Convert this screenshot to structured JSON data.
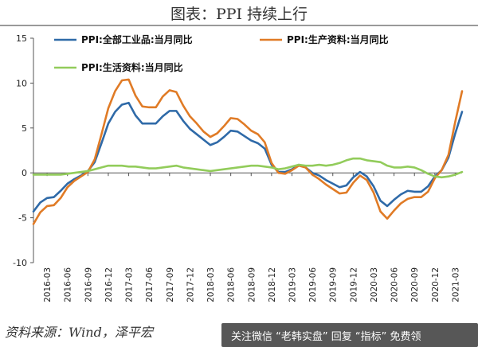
{
  "header": {
    "title": "图表：PPI 持续上行"
  },
  "footer": {
    "source": "资料来源：Wind，泽平宏",
    "watermark": "关注微信 “老韩实盘” 回复 “指标” 免费领"
  },
  "chart_data": {
    "type": "line",
    "title": "图表：PPI 持续上行",
    "xlabel": "",
    "ylabel": "",
    "ylim": [
      -10,
      15
    ],
    "yticks": [
      -10,
      -5,
      0,
      5,
      10,
      15
    ],
    "grid": false,
    "legend_position": "top",
    "x_tick_labels": [
      "2016-03",
      "2016-06",
      "2016-09",
      "2016-12",
      "2017-03",
      "2017-06",
      "2017-09",
      "2017-12",
      "2018-03",
      "2018-06",
      "2018-09",
      "2018-12",
      "2019-03",
      "2019-06",
      "2019-09",
      "2019-12",
      "2020-03",
      "2020-06",
      "2020-09",
      "2020-12",
      "2021-03"
    ],
    "x": [
      "2016-01",
      "2016-02",
      "2016-03",
      "2016-04",
      "2016-05",
      "2016-06",
      "2016-07",
      "2016-08",
      "2016-09",
      "2016-10",
      "2016-11",
      "2016-12",
      "2017-01",
      "2017-02",
      "2017-03",
      "2017-04",
      "2017-05",
      "2017-06",
      "2017-07",
      "2017-08",
      "2017-09",
      "2017-10",
      "2017-11",
      "2017-12",
      "2018-01",
      "2018-02",
      "2018-03",
      "2018-04",
      "2018-05",
      "2018-06",
      "2018-07",
      "2018-08",
      "2018-09",
      "2018-10",
      "2018-11",
      "2018-12",
      "2019-01",
      "2019-02",
      "2019-03",
      "2019-04",
      "2019-05",
      "2019-06",
      "2019-07",
      "2019-08",
      "2019-09",
      "2019-10",
      "2019-11",
      "2019-12",
      "2020-01",
      "2020-02",
      "2020-03",
      "2020-04",
      "2020-05",
      "2020-06",
      "2020-07",
      "2020-08",
      "2020-09",
      "2020-10",
      "2020-11",
      "2020-12",
      "2021-01",
      "2021-02",
      "2021-03",
      "2021-04"
    ],
    "series": [
      {
        "name": "PPI:全部工业品:当月同比",
        "color": "#2f6aa8",
        "values": [
          -4.3,
          -3.3,
          -2.8,
          -2.7,
          -2.0,
          -1.2,
          -0.7,
          -0.3,
          0.2,
          1.2,
          3.3,
          5.5,
          6.8,
          7.6,
          7.8,
          6.4,
          5.5,
          5.5,
          5.5,
          6.3,
          6.9,
          6.9,
          5.8,
          4.9,
          4.3,
          3.7,
          3.1,
          3.4,
          4.0,
          4.7,
          4.6,
          4.1,
          3.6,
          3.3,
          2.7,
          0.9,
          0.1,
          0.1,
          0.4,
          0.9,
          0.6,
          0.0,
          -0.3,
          -0.8,
          -1.2,
          -1.6,
          -1.4,
          -0.5,
          0.1,
          -0.4,
          -1.5,
          -3.1,
          -3.7,
          -3.0,
          -2.4,
          -2.0,
          -2.1,
          -2.1,
          -1.5,
          -0.4,
          0.3,
          1.7,
          4.4,
          6.8
        ]
      },
      {
        "name": "PPI:生产资料:当月同比",
        "color": "#e07b26",
        "values": [
          -5.7,
          -4.4,
          -3.7,
          -3.6,
          -2.8,
          -1.6,
          -0.9,
          -0.4,
          0.1,
          1.5,
          4.3,
          7.2,
          9.1,
          10.3,
          10.4,
          8.6,
          7.4,
          7.3,
          7.3,
          8.5,
          9.2,
          9.0,
          7.5,
          6.3,
          5.5,
          4.6,
          4.0,
          4.4,
          5.2,
          6.1,
          6.0,
          5.4,
          4.7,
          4.3,
          3.4,
          1.1,
          0.0,
          -0.1,
          0.3,
          0.8,
          0.6,
          -0.2,
          -0.7,
          -1.3,
          -1.8,
          -2.3,
          -2.2,
          -1.1,
          -0.3,
          -0.8,
          -2.2,
          -4.3,
          -5.1,
          -4.2,
          -3.4,
          -2.9,
          -2.7,
          -2.7,
          -2.1,
          -0.6,
          0.3,
          2.0,
          5.7,
          9.1
        ]
      },
      {
        "name": "PPI:生活资料:当月同比",
        "color": "#92cc5b",
        "values": [
          -0.2,
          -0.2,
          -0.2,
          -0.2,
          -0.2,
          -0.1,
          0.0,
          0.1,
          0.2,
          0.4,
          0.6,
          0.8,
          0.8,
          0.8,
          0.7,
          0.7,
          0.6,
          0.5,
          0.5,
          0.6,
          0.7,
          0.8,
          0.6,
          0.5,
          0.4,
          0.3,
          0.2,
          0.3,
          0.4,
          0.5,
          0.6,
          0.7,
          0.8,
          0.8,
          0.7,
          0.6,
          0.4,
          0.5,
          0.7,
          0.9,
          0.8,
          0.8,
          0.9,
          0.8,
          0.9,
          1.1,
          1.4,
          1.6,
          1.6,
          1.4,
          1.3,
          1.2,
          0.8,
          0.6,
          0.6,
          0.7,
          0.6,
          0.3,
          -0.1,
          -0.4,
          -0.5,
          -0.4,
          -0.2,
          0.1
        ]
      }
    ]
  }
}
